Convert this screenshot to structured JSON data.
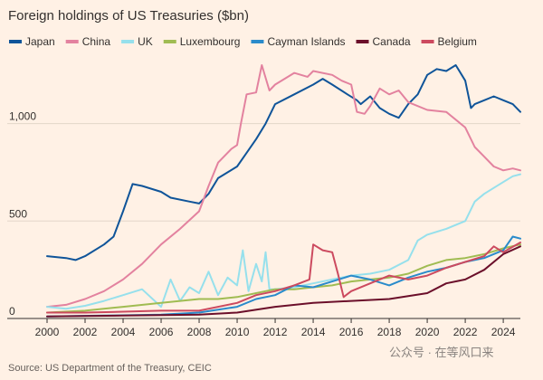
{
  "chart_data": {
    "type": "line",
    "title": "Foreign holdings of US Treasuries ($bn)",
    "source": "Source: US Department of the Treasury, CEIC",
    "watermark": "公众号 · 在等风口来",
    "xlim": [
      2000,
      2024.9
    ],
    "ylim": [
      0,
      1300
    ],
    "x_ticks": [
      2000,
      2002,
      2004,
      2006,
      2008,
      2010,
      2012,
      2014,
      2016,
      2018,
      2020,
      2022,
      2024
    ],
    "x_tick_labels": [
      "2000",
      "2002",
      "2004",
      "2006",
      "2008",
      "2010",
      "2012",
      "2014",
      "2016",
      "2018",
      "2020",
      "2022",
      "2024"
    ],
    "y_ticks": [
      0,
      500,
      1000
    ],
    "y_tick_labels": [
      "0",
      "500",
      "1,000"
    ],
    "grid": "horizontal",
    "legend_position": "top",
    "series": [
      {
        "name": "Japan",
        "color": "#0f5499",
        "points": [
          [
            2000,
            320
          ],
          [
            2001,
            310
          ],
          [
            2001.5,
            300
          ],
          [
            2002,
            320
          ],
          [
            2003,
            380
          ],
          [
            2003.5,
            420
          ],
          [
            2004,
            550
          ],
          [
            2004.5,
            690
          ],
          [
            2005,
            680
          ],
          [
            2006,
            650
          ],
          [
            2006.5,
            620
          ],
          [
            2007.5,
            600
          ],
          [
            2008,
            590
          ],
          [
            2008.5,
            640
          ],
          [
            2009,
            720
          ],
          [
            2010,
            780
          ],
          [
            2010.5,
            850
          ],
          [
            2011,
            920
          ],
          [
            2011.5,
            1000
          ],
          [
            2012,
            1100
          ],
          [
            2013,
            1150
          ],
          [
            2014,
            1200
          ],
          [
            2014.5,
            1230
          ],
          [
            2015,
            1200
          ],
          [
            2015.8,
            1150
          ],
          [
            2016.3,
            1120
          ],
          [
            2016.5,
            1100
          ],
          [
            2017,
            1140
          ],
          [
            2017.5,
            1080
          ],
          [
            2018,
            1050
          ],
          [
            2018.5,
            1030
          ],
          [
            2019,
            1100
          ],
          [
            2019.5,
            1150
          ],
          [
            2020,
            1250
          ],
          [
            2020.5,
            1280
          ],
          [
            2021,
            1270
          ],
          [
            2021.5,
            1300
          ],
          [
            2022,
            1220
          ],
          [
            2022.3,
            1080
          ],
          [
            2022.5,
            1100
          ],
          [
            2023,
            1120
          ],
          [
            2023.5,
            1140
          ],
          [
            2024,
            1120
          ],
          [
            2024.5,
            1100
          ],
          [
            2024.9,
            1060
          ]
        ]
      },
      {
        "name": "China",
        "color": "#e3829f",
        "points": [
          [
            2000,
            60
          ],
          [
            2001,
            70
          ],
          [
            2002,
            100
          ],
          [
            2003,
            140
          ],
          [
            2004,
            200
          ],
          [
            2005,
            280
          ],
          [
            2006,
            380
          ],
          [
            2007,
            460
          ],
          [
            2008,
            550
          ],
          [
            2008.5,
            680
          ],
          [
            2009,
            800
          ],
          [
            2009.7,
            870
          ],
          [
            2010,
            890
          ],
          [
            2010.2,
            1000
          ],
          [
            2010.5,
            1150
          ],
          [
            2011,
            1160
          ],
          [
            2011.3,
            1300
          ],
          [
            2011.7,
            1170
          ],
          [
            2012,
            1200
          ],
          [
            2013,
            1260
          ],
          [
            2013.7,
            1240
          ],
          [
            2014,
            1270
          ],
          [
            2015,
            1250
          ],
          [
            2015.5,
            1220
          ],
          [
            2016,
            1200
          ],
          [
            2016.3,
            1060
          ],
          [
            2016.7,
            1050
          ],
          [
            2017,
            1090
          ],
          [
            2017.5,
            1180
          ],
          [
            2018,
            1150
          ],
          [
            2018.5,
            1170
          ],
          [
            2019,
            1110
          ],
          [
            2020,
            1070
          ],
          [
            2021,
            1060
          ],
          [
            2022,
            980
          ],
          [
            2022.5,
            880
          ],
          [
            2023,
            830
          ],
          [
            2023.5,
            780
          ],
          [
            2024,
            760
          ],
          [
            2024.5,
            770
          ],
          [
            2024.9,
            760
          ]
        ]
      },
      {
        "name": "UK",
        "color": "#96e0ec",
        "points": [
          [
            2000,
            60
          ],
          [
            2001,
            50
          ],
          [
            2002,
            65
          ],
          [
            2003,
            90
          ],
          [
            2004,
            120
          ],
          [
            2005,
            150
          ],
          [
            2006,
            60
          ],
          [
            2006.5,
            200
          ],
          [
            2007,
            90
          ],
          [
            2007.5,
            160
          ],
          [
            2008,
            130
          ],
          [
            2008.5,
            240
          ],
          [
            2009,
            120
          ],
          [
            2009.5,
            210
          ],
          [
            2010,
            170
          ],
          [
            2010.3,
            350
          ],
          [
            2010.6,
            140
          ],
          [
            2011,
            280
          ],
          [
            2011.3,
            190
          ],
          [
            2011.5,
            340
          ],
          [
            2011.7,
            150
          ],
          [
            2012,
            150
          ],
          [
            2013,
            160
          ],
          [
            2014,
            180
          ],
          [
            2015,
            200
          ],
          [
            2016,
            220
          ],
          [
            2017,
            230
          ],
          [
            2018,
            250
          ],
          [
            2019,
            300
          ],
          [
            2019.5,
            400
          ],
          [
            2020,
            430
          ],
          [
            2021,
            460
          ],
          [
            2022,
            500
          ],
          [
            2022.5,
            600
          ],
          [
            2023,
            640
          ],
          [
            2023.5,
            670
          ],
          [
            2024,
            700
          ],
          [
            2024.5,
            730
          ],
          [
            2024.9,
            740
          ]
        ]
      },
      {
        "name": "Luxembourg",
        "color": "#a0bc52",
        "points": [
          [
            2000,
            30
          ],
          [
            2002,
            40
          ],
          [
            2004,
            60
          ],
          [
            2006,
            80
          ],
          [
            2007,
            90
          ],
          [
            2008,
            100
          ],
          [
            2009,
            100
          ],
          [
            2010,
            110
          ],
          [
            2011,
            130
          ],
          [
            2012,
            150
          ],
          [
            2013,
            150
          ],
          [
            2014,
            160
          ],
          [
            2015,
            170
          ],
          [
            2016,
            190
          ],
          [
            2017,
            200
          ],
          [
            2018,
            210
          ],
          [
            2019,
            230
          ],
          [
            2020,
            270
          ],
          [
            2021,
            300
          ],
          [
            2022,
            310
          ],
          [
            2023,
            330
          ],
          [
            2024,
            360
          ],
          [
            2024.9,
            380
          ]
        ]
      },
      {
        "name": "Cayman Islands",
        "color": "#2a8bcb",
        "points": [
          [
            2000,
            10
          ],
          [
            2003,
            15
          ],
          [
            2006,
            20
          ],
          [
            2008,
            30
          ],
          [
            2010,
            60
          ],
          [
            2011,
            100
          ],
          [
            2012,
            120
          ],
          [
            2013,
            170
          ],
          [
            2014,
            160
          ],
          [
            2015,
            190
          ],
          [
            2016,
            220
          ],
          [
            2017,
            200
          ],
          [
            2018,
            170
          ],
          [
            2019,
            210
          ],
          [
            2020,
            240
          ],
          [
            2021,
            260
          ],
          [
            2022,
            290
          ],
          [
            2023,
            310
          ],
          [
            2024,
            350
          ],
          [
            2024.5,
            420
          ],
          [
            2024.9,
            410
          ]
        ]
      },
      {
        "name": "Canada",
        "color": "#6b0f2a",
        "points": [
          [
            2000,
            10
          ],
          [
            2004,
            15
          ],
          [
            2008,
            20
          ],
          [
            2010,
            30
          ],
          [
            2012,
            60
          ],
          [
            2014,
            80
          ],
          [
            2016,
            90
          ],
          [
            2018,
            100
          ],
          [
            2020,
            130
          ],
          [
            2021,
            180
          ],
          [
            2022,
            200
          ],
          [
            2023,
            250
          ],
          [
            2024,
            330
          ],
          [
            2024.9,
            370
          ]
        ]
      },
      {
        "name": "Belgium",
        "color": "#cc4a5f",
        "points": [
          [
            2000,
            30
          ],
          [
            2002,
            30
          ],
          [
            2004,
            35
          ],
          [
            2006,
            40
          ],
          [
            2008,
            40
          ],
          [
            2010,
            80
          ],
          [
            2011,
            120
          ],
          [
            2012,
            140
          ],
          [
            2013,
            170
          ],
          [
            2013.8,
            200
          ],
          [
            2014,
            380
          ],
          [
            2014.5,
            350
          ],
          [
            2015,
            340
          ],
          [
            2015.3,
            230
          ],
          [
            2015.6,
            110
          ],
          [
            2016,
            140
          ],
          [
            2017,
            180
          ],
          [
            2018,
            220
          ],
          [
            2019,
            200
          ],
          [
            2020,
            220
          ],
          [
            2021,
            260
          ],
          [
            2022,
            290
          ],
          [
            2023,
            320
          ],
          [
            2023.5,
            370
          ],
          [
            2024,
            340
          ],
          [
            2024.9,
            390
          ]
        ]
      }
    ]
  }
}
